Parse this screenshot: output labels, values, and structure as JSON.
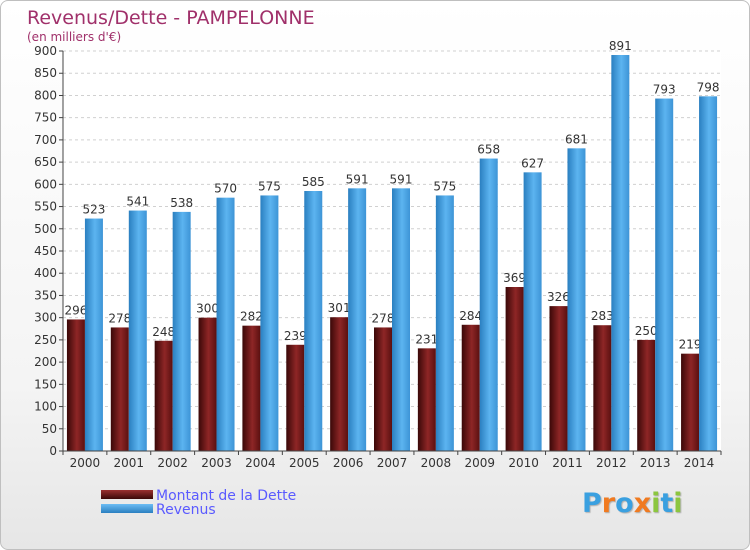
{
  "title": "Revenus/Dette - PAMPELONNE",
  "subtitle": "(en milliers d'€)",
  "logo": {
    "text": "Proxiti",
    "letters": [
      "P",
      "r",
      "o",
      "x",
      "i",
      "t",
      "i"
    ],
    "colors": [
      "#3aa0e0",
      "#f07a20",
      "#3aa0e0",
      "#f07a20",
      "#8cc63f",
      "#3aa0e0",
      "#8cc63f"
    ]
  },
  "chart_data": {
    "type": "bar",
    "categories": [
      "2000",
      "2001",
      "2002",
      "2003",
      "2004",
      "2005",
      "2006",
      "2007",
      "2008",
      "2009",
      "2010",
      "2011",
      "2012",
      "2013",
      "2014"
    ],
    "series": [
      {
        "name": "Montant de la Dette",
        "values": [
          296,
          278,
          248,
          300,
          282,
          239,
          301,
          278,
          231,
          284,
          369,
          326,
          283,
          250,
          219
        ],
        "color": "#7a1a1a"
      },
      {
        "name": "Revenus",
        "values": [
          523,
          541,
          538,
          570,
          575,
          585,
          591,
          591,
          575,
          658,
          627,
          681,
          891,
          793,
          798
        ],
        "color": "#4aa6e8"
      }
    ],
    "ylim": [
      0,
      900
    ],
    "yticks": [
      0,
      50,
      100,
      150,
      200,
      250,
      300,
      350,
      400,
      450,
      500,
      550,
      600,
      650,
      700,
      750,
      800,
      850,
      900
    ],
    "grid": true,
    "legend": "bottom-left"
  }
}
